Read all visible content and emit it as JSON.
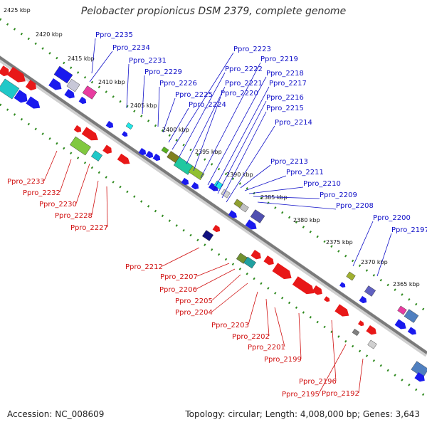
{
  "title": "Pelobacter propionicus DSM 2379, complete genome",
  "footer": {
    "accession": "Accession: NC_008609",
    "summary": "Topology: circular; Length: 4,008,000 bp; Genes: 3,643"
  },
  "colors": {
    "backbone": "#7a7a7a",
    "ruler_dots": "#2f8a1f",
    "forward_label": "#1010c8",
    "reverse_label": "#d01010",
    "forward_gene": "#1a1aee",
    "reverse_gene": "#ee1a1a"
  },
  "ruler_labels": [
    "2425 kbp",
    "2420 kbp",
    "2415 kbp",
    "2410 kbp",
    "2405 kbp",
    "2400 kbp",
    "2395 kbp",
    "2390 kbp",
    "2385 kbp",
    "2380 kbp",
    "2375 kbp",
    "2370 kbp",
    "2365 kbp"
  ],
  "forward_genes": [
    "Ppro_2235",
    "Ppro_2234",
    "Ppro_2231",
    "Ppro_2229",
    "Ppro_2226",
    "Ppro_2225",
    "Ppro_2224",
    "Ppro_2223",
    "Ppro_2222",
    "Ppro_2221",
    "Ppro_2220",
    "Ppro_2219",
    "Ppro_2218",
    "Ppro_2217",
    "Ppro_2216",
    "Ppro_2215",
    "Ppro_2214",
    "Ppro_2213",
    "Ppro_2211",
    "Ppro_2210",
    "Ppro_2209",
    "Ppro_2208",
    "Ppro_2200",
    "Ppro_2197"
  ],
  "reverse_genes": [
    "Ppro_2233",
    "Ppro_2232",
    "Ppro_2230",
    "Ppro_2228",
    "Ppro_2227",
    "Ppro_2212",
    "Ppro_2207",
    "Ppro_2206",
    "Ppro_2205",
    "Ppro_2204",
    "Ppro_2203",
    "Ppro_2202",
    "Ppro_2201",
    "Ppro_2199",
    "Ppro_2196",
    "Ppro_2195",
    "Ppro_2192"
  ]
}
